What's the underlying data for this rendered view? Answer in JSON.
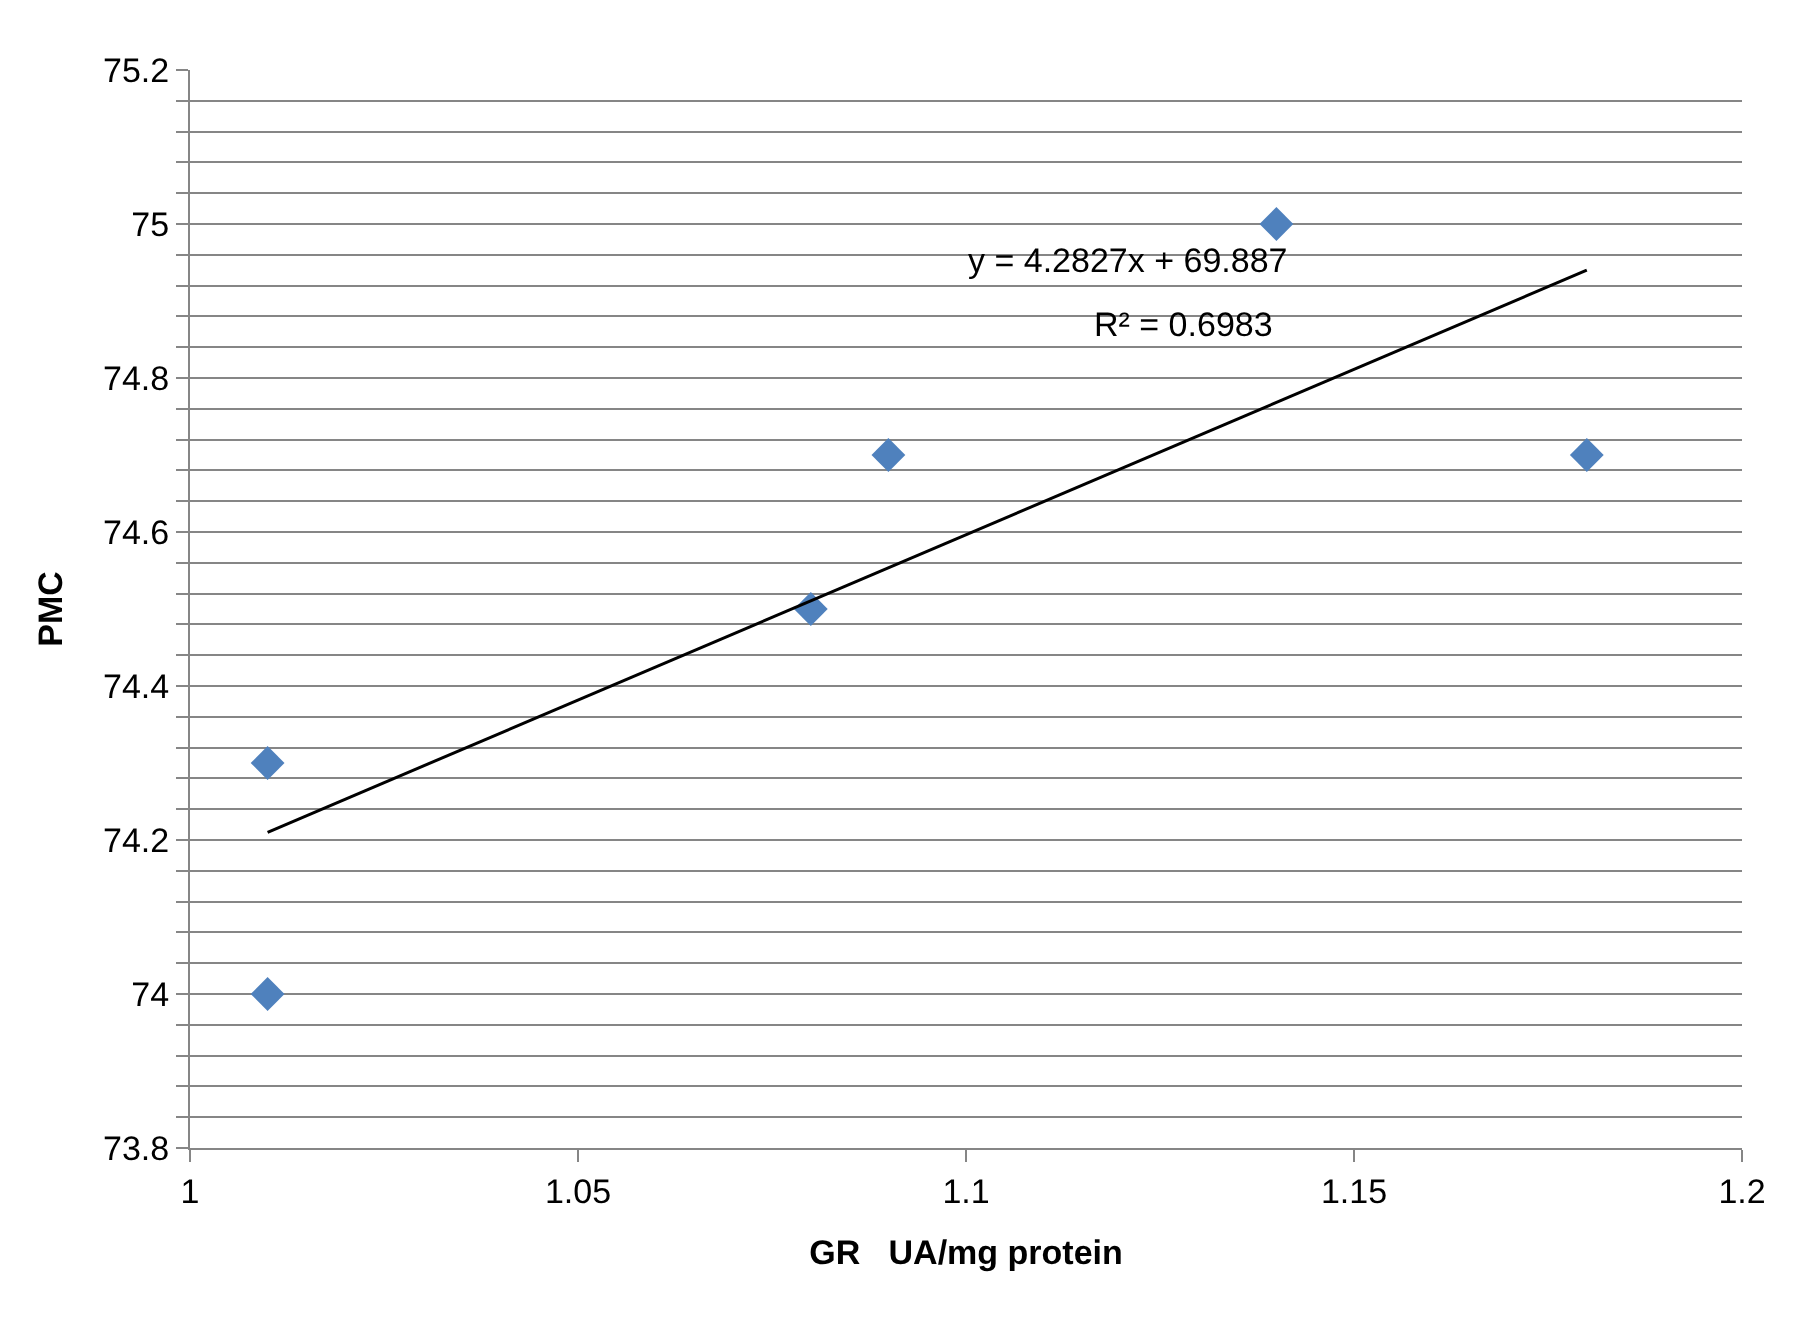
{
  "chart_data": {
    "type": "scatter",
    "xlabel": "GR   UA/mg protein",
    "ylabel": "PMC",
    "series": [
      {
        "color": "#4f81bd",
        "marker": "diamond",
        "x": [
          1.01,
          1.01,
          1.08,
          1.09,
          1.14,
          1.18
        ],
        "values": [
          74.3,
          74.0,
          74.5,
          74.7,
          75.0,
          74.7
        ]
      },
      {
        "type": "line",
        "color": "#000000",
        "marker": "none",
        "line_style": "solid",
        "x": [
          1.01,
          1.18
        ],
        "values": [
          74.21,
          74.94
        ]
      }
    ],
    "annotations": [
      "y = 4.2827x + 69.887",
      "R² = 0.6983"
    ],
    "xlim": [
      1,
      1.2
    ],
    "xticks": [
      1,
      1.05,
      1.1,
      1.15,
      1.2
    ],
    "ylim": [
      73.8,
      75.2
    ],
    "yticks": [
      73.8,
      {
        "value": 73.84,
        "label": null
      },
      {
        "value": 73.88,
        "label": null
      },
      {
        "value": 73.92,
        "label": null
      },
      {
        "value": 73.96,
        "label": null
      },
      74,
      {
        "value": 74.04,
        "label": null
      },
      {
        "value": 74.08,
        "label": null
      },
      {
        "value": 74.12,
        "label": null
      },
      {
        "value": 74.16,
        "label": null
      },
      74.2,
      {
        "value": 74.24,
        "label": null
      },
      {
        "value": 74.28,
        "label": null
      },
      {
        "value": 74.32,
        "label": null
      },
      {
        "value": 74.36,
        "label": null
      },
      74.4,
      {
        "value": 74.44,
        "label": null
      },
      {
        "value": 74.48,
        "label": null
      },
      {
        "value": 74.52,
        "label": null
      },
      {
        "value": 74.56,
        "label": null
      },
      74.6,
      {
        "value": 74.64,
        "label": null
      },
      {
        "value": 74.68,
        "label": null
      },
      {
        "value": 74.72,
        "label": null
      },
      {
        "value": 74.76,
        "label": null
      },
      74.8,
      {
        "value": 74.84,
        "label": null
      },
      {
        "value": 74.88,
        "label": null
      },
      {
        "value": 74.92,
        "label": null
      },
      {
        "value": 74.96,
        "label": null
      },
      75,
      {
        "value": 75.04,
        "label": null
      },
      {
        "value": 75.08,
        "label": null
      },
      {
        "value": 75.12,
        "label": null
      },
      {
        "value": 75.16,
        "label": null
      },
      75.2
    ],
    "grid": "y"
  }
}
